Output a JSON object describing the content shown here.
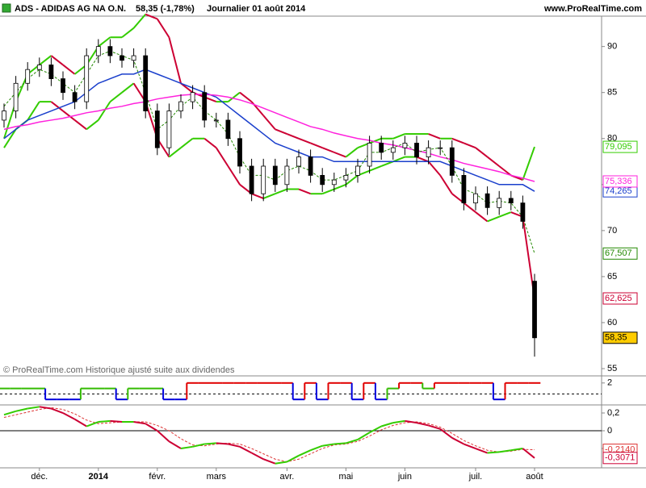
{
  "header": {
    "symbol": "ADS - ADIDAS AG NA O.N.",
    "quote": "58,35 (-1,78%)",
    "period": "Journalier  01 août 2014",
    "site": "www.ProRealTime.com"
  },
  "note": "© ProRealTime.com Historique ajusté suite aux dividendes",
  "chart_data": [
    {
      "type": "candlestick",
      "categories": [
        null,
        null,
        null,
        "déc.",
        null,
        null,
        null,
        null,
        "2014",
        null,
        null,
        null,
        null,
        "févr.",
        null,
        null,
        null,
        null,
        "mars",
        null,
        null,
        null,
        null,
        null,
        "avr.",
        null,
        null,
        null,
        null,
        "mai",
        null,
        null,
        null,
        null,
        "juin",
        null,
        null,
        null,
        null,
        null,
        "juil.",
        null,
        null,
        null,
        null,
        "août"
      ],
      "open": [
        82,
        83,
        86,
        87.5,
        88,
        86.5,
        85,
        84,
        89,
        90,
        89,
        88.5,
        89,
        83,
        79,
        83,
        84,
        85,
        82,
        82,
        80,
        77,
        74,
        77,
        75,
        77,
        78,
        76,
        75,
        75.5,
        76,
        77,
        79.5,
        78.5,
        79,
        79.5,
        78,
        79,
        79,
        76,
        73,
        74,
        72.5,
        73.5,
        73,
        64.5
      ],
      "high": [
        83.8,
        86.8,
        88.3,
        88.8,
        88.8,
        87.3,
        85.8,
        89.8,
        90.8,
        90.8,
        89.8,
        89.8,
        89.8,
        83.8,
        83.8,
        84.8,
        85.8,
        85.8,
        82.8,
        82.8,
        80.8,
        77.8,
        77.8,
        77.8,
        77.8,
        78.8,
        78.8,
        76.8,
        76.3,
        76.8,
        77.8,
        80.3,
        80.3,
        79.8,
        80.3,
        80.3,
        79.8,
        79.8,
        79.8,
        76.8,
        74.8,
        74.8,
        74.3,
        74.3,
        73.8,
        65.3
      ],
      "low": [
        81.2,
        82.2,
        85.2,
        86.7,
        85.7,
        84.2,
        83.2,
        83.2,
        88.2,
        88.2,
        87.7,
        87.7,
        82.2,
        78.2,
        78.2,
        82.2,
        83.2,
        81.2,
        81.2,
        79.2,
        76.2,
        73.2,
        73.2,
        74.2,
        74.2,
        76.2,
        75.2,
        74.2,
        74.2,
        74.7,
        75.2,
        76.2,
        77.7,
        77.7,
        78.2,
        77.2,
        77.2,
        78.2,
        75.2,
        72.2,
        72.2,
        71.7,
        71.7,
        72.2,
        70.2,
        56.3
      ],
      "close": [
        83,
        86,
        87.5,
        88,
        86.5,
        85,
        84,
        89,
        90,
        89,
        88.5,
        89,
        83,
        79,
        83,
        84,
        85,
        82,
        82,
        80,
        77,
        74,
        77,
        75,
        77,
        78,
        76,
        75,
        75.5,
        76,
        77,
        79.5,
        78.5,
        79,
        79.5,
        78,
        79,
        79,
        76,
        73,
        74,
        72.5,
        73.5,
        73,
        71,
        58.35
      ],
      "close_label": "58,35",
      "close_box_color": "#ffcc00",
      "up_color": "#ffffff",
      "down_color": "#000000",
      "rising_color": "#33cc00",
      "falling_color": "#cc0033",
      "series": [
        {
          "style": "band",
          "values": [
            80,
            84,
            87,
            88,
            89,
            88,
            87,
            88,
            90,
            91,
            91,
            92,
            93.5,
            93,
            91,
            86,
            85,
            84.5,
            84,
            84,
            85,
            84,
            82.5,
            81,
            80.5,
            80,
            79.5,
            79,
            78.5,
            78,
            79,
            79.5,
            80,
            80,
            80.5,
            80.5,
            80.5,
            80,
            80,
            79.5,
            79,
            78,
            77,
            76,
            75.5,
            79.095
          ],
          "last_label": "79,095",
          "color": "#33cc00"
        },
        {
          "style": "band",
          "values": [
            79,
            81,
            82,
            84,
            84,
            83,
            82,
            81,
            82,
            84,
            85,
            86,
            84,
            80,
            78,
            79,
            80,
            80,
            79,
            77,
            75,
            74,
            73.5,
            74,
            74.5,
            74.5,
            74,
            74,
            74.5,
            75,
            76,
            76.5,
            77,
            77.5,
            78,
            78,
            77.5,
            76,
            74,
            73,
            72,
            71,
            71.5,
            72,
            71.5,
            62.625
          ],
          "last_label": "62,625",
          "color": "#cc0033"
        },
        {
          "style": "solid",
          "color": "#1a3fcc",
          "values": [
            80,
            81,
            82,
            82.5,
            83,
            83.5,
            84,
            85,
            86,
            86.5,
            87,
            87,
            87.5,
            87,
            86.5,
            86,
            85.5,
            85,
            84.5,
            83.5,
            82.5,
            81.5,
            80.5,
            79.5,
            79,
            78.5,
            78,
            78,
            77.5,
            77.5,
            77.5,
            77.5,
            77.5,
            77.5,
            77.5,
            77.5,
            77.5,
            77.5,
            77,
            76.5,
            76,
            75.5,
            75,
            75,
            75,
            74.265
          ],
          "last_label": "74,265"
        },
        {
          "style": "solid",
          "color": "#ff22dd",
          "values": [
            81,
            81.3,
            81.5,
            81.8,
            82,
            82.2,
            82.5,
            82.8,
            83,
            83.3,
            83.5,
            83.8,
            84,
            84.3,
            84.5,
            84.7,
            84.8,
            84.8,
            84.7,
            84.5,
            84.2,
            83.8,
            83.3,
            82.8,
            82.3,
            81.8,
            81.3,
            81,
            80.6,
            80.3,
            80,
            79.8,
            79.5,
            79.3,
            79,
            78.7,
            78.4,
            78,
            77.7,
            77.3,
            77,
            76.7,
            76.4,
            76,
            75.7,
            75.336
          ],
          "last_label": "75,336"
        },
        {
          "style": "dashed",
          "color": "#228800",
          "values": [
            83.5,
            85,
            86.5,
            87.5,
            87,
            86,
            85,
            87,
            89,
            89.5,
            89,
            88.5,
            85,
            81,
            82,
            83.5,
            84.5,
            83,
            82,
            80.5,
            78,
            76,
            76,
            75.5,
            76.5,
            77,
            76.5,
            75.5,
            75.5,
            76,
            76.5,
            78.5,
            78.5,
            79,
            79.5,
            78.5,
            78.8,
            79,
            77,
            74.5,
            74,
            73,
            73.2,
            73,
            71.5,
            67.507
          ],
          "last_label": "67,507"
        }
      ],
      "ylim": [
        54.3,
        93.3
      ],
      "yticks": [
        55,
        60,
        65,
        70,
        75,
        80,
        85,
        90
      ]
    },
    {
      "type": "step",
      "values": [
        1,
        1,
        1,
        1,
        -1,
        -1,
        -1,
        1,
        1,
        1,
        -1,
        1,
        1,
        1,
        -1,
        -1,
        2,
        2,
        2,
        2,
        2,
        2,
        2,
        2,
        2,
        -1,
        2,
        -1,
        2,
        2,
        -1,
        2,
        -1,
        1,
        2,
        2,
        1,
        2,
        2,
        2,
        2,
        2,
        -1,
        2,
        2,
        2
      ],
      "levels": [
        2,
        1,
        -1
      ],
      "level_colors": [
        "#e00000",
        "#33bb00",
        "#0000dd"
      ],
      "ylim": [
        -2,
        3
      ],
      "yticks": [
        2
      ]
    },
    {
      "type": "line",
      "rising_color": "#33cc00",
      "falling_color": "#cc0033",
      "values": [
        0.18,
        0.22,
        0.25,
        0.27,
        0.25,
        0.2,
        0.13,
        0.05,
        0.1,
        0.11,
        0.1,
        0.1,
        0.08,
        0,
        -0.12,
        -0.2,
        -0.18,
        -0.15,
        -0.14,
        -0.15,
        -0.18,
        -0.25,
        -0.32,
        -0.37,
        -0.35,
        -0.28,
        -0.22,
        -0.17,
        -0.15,
        -0.14,
        -0.1,
        -0.02,
        0.05,
        0.09,
        0.11,
        0.09,
        0.06,
        0.02,
        -0.08,
        -0.15,
        -0.2,
        -0.25,
        -0.24,
        -0.22,
        -0.2,
        -0.3071
      ],
      "values_last_label": "-0,3071",
      "signal": {
        "color": "#dd3333",
        "values": [
          0.15,
          0.18,
          0.21,
          0.24,
          0.26,
          0.24,
          0.19,
          0.12,
          0.08,
          0.09,
          0.1,
          0.1,
          0.1,
          0.06,
          0,
          -0.09,
          -0.16,
          -0.17,
          -0.15,
          -0.14,
          -0.15,
          -0.2,
          -0.26,
          -0.32,
          -0.35,
          -0.32,
          -0.26,
          -0.2,
          -0.16,
          -0.15,
          -0.12,
          -0.06,
          0.01,
          0.06,
          0.09,
          0.1,
          0.08,
          0.04,
          -0.03,
          -0.11,
          -0.17,
          -0.22,
          -0.24,
          -0.23,
          -0.21,
          -0.214
        ],
        "last_label": "-0,2140"
      },
      "ylim": [
        -0.418,
        0.291
      ],
      "yticks": [
        {
          "value": 0.2,
          "label": "0,2"
        },
        0,
        {
          "value": -0.2,
          "label": "-0,2"
        }
      ]
    }
  ]
}
